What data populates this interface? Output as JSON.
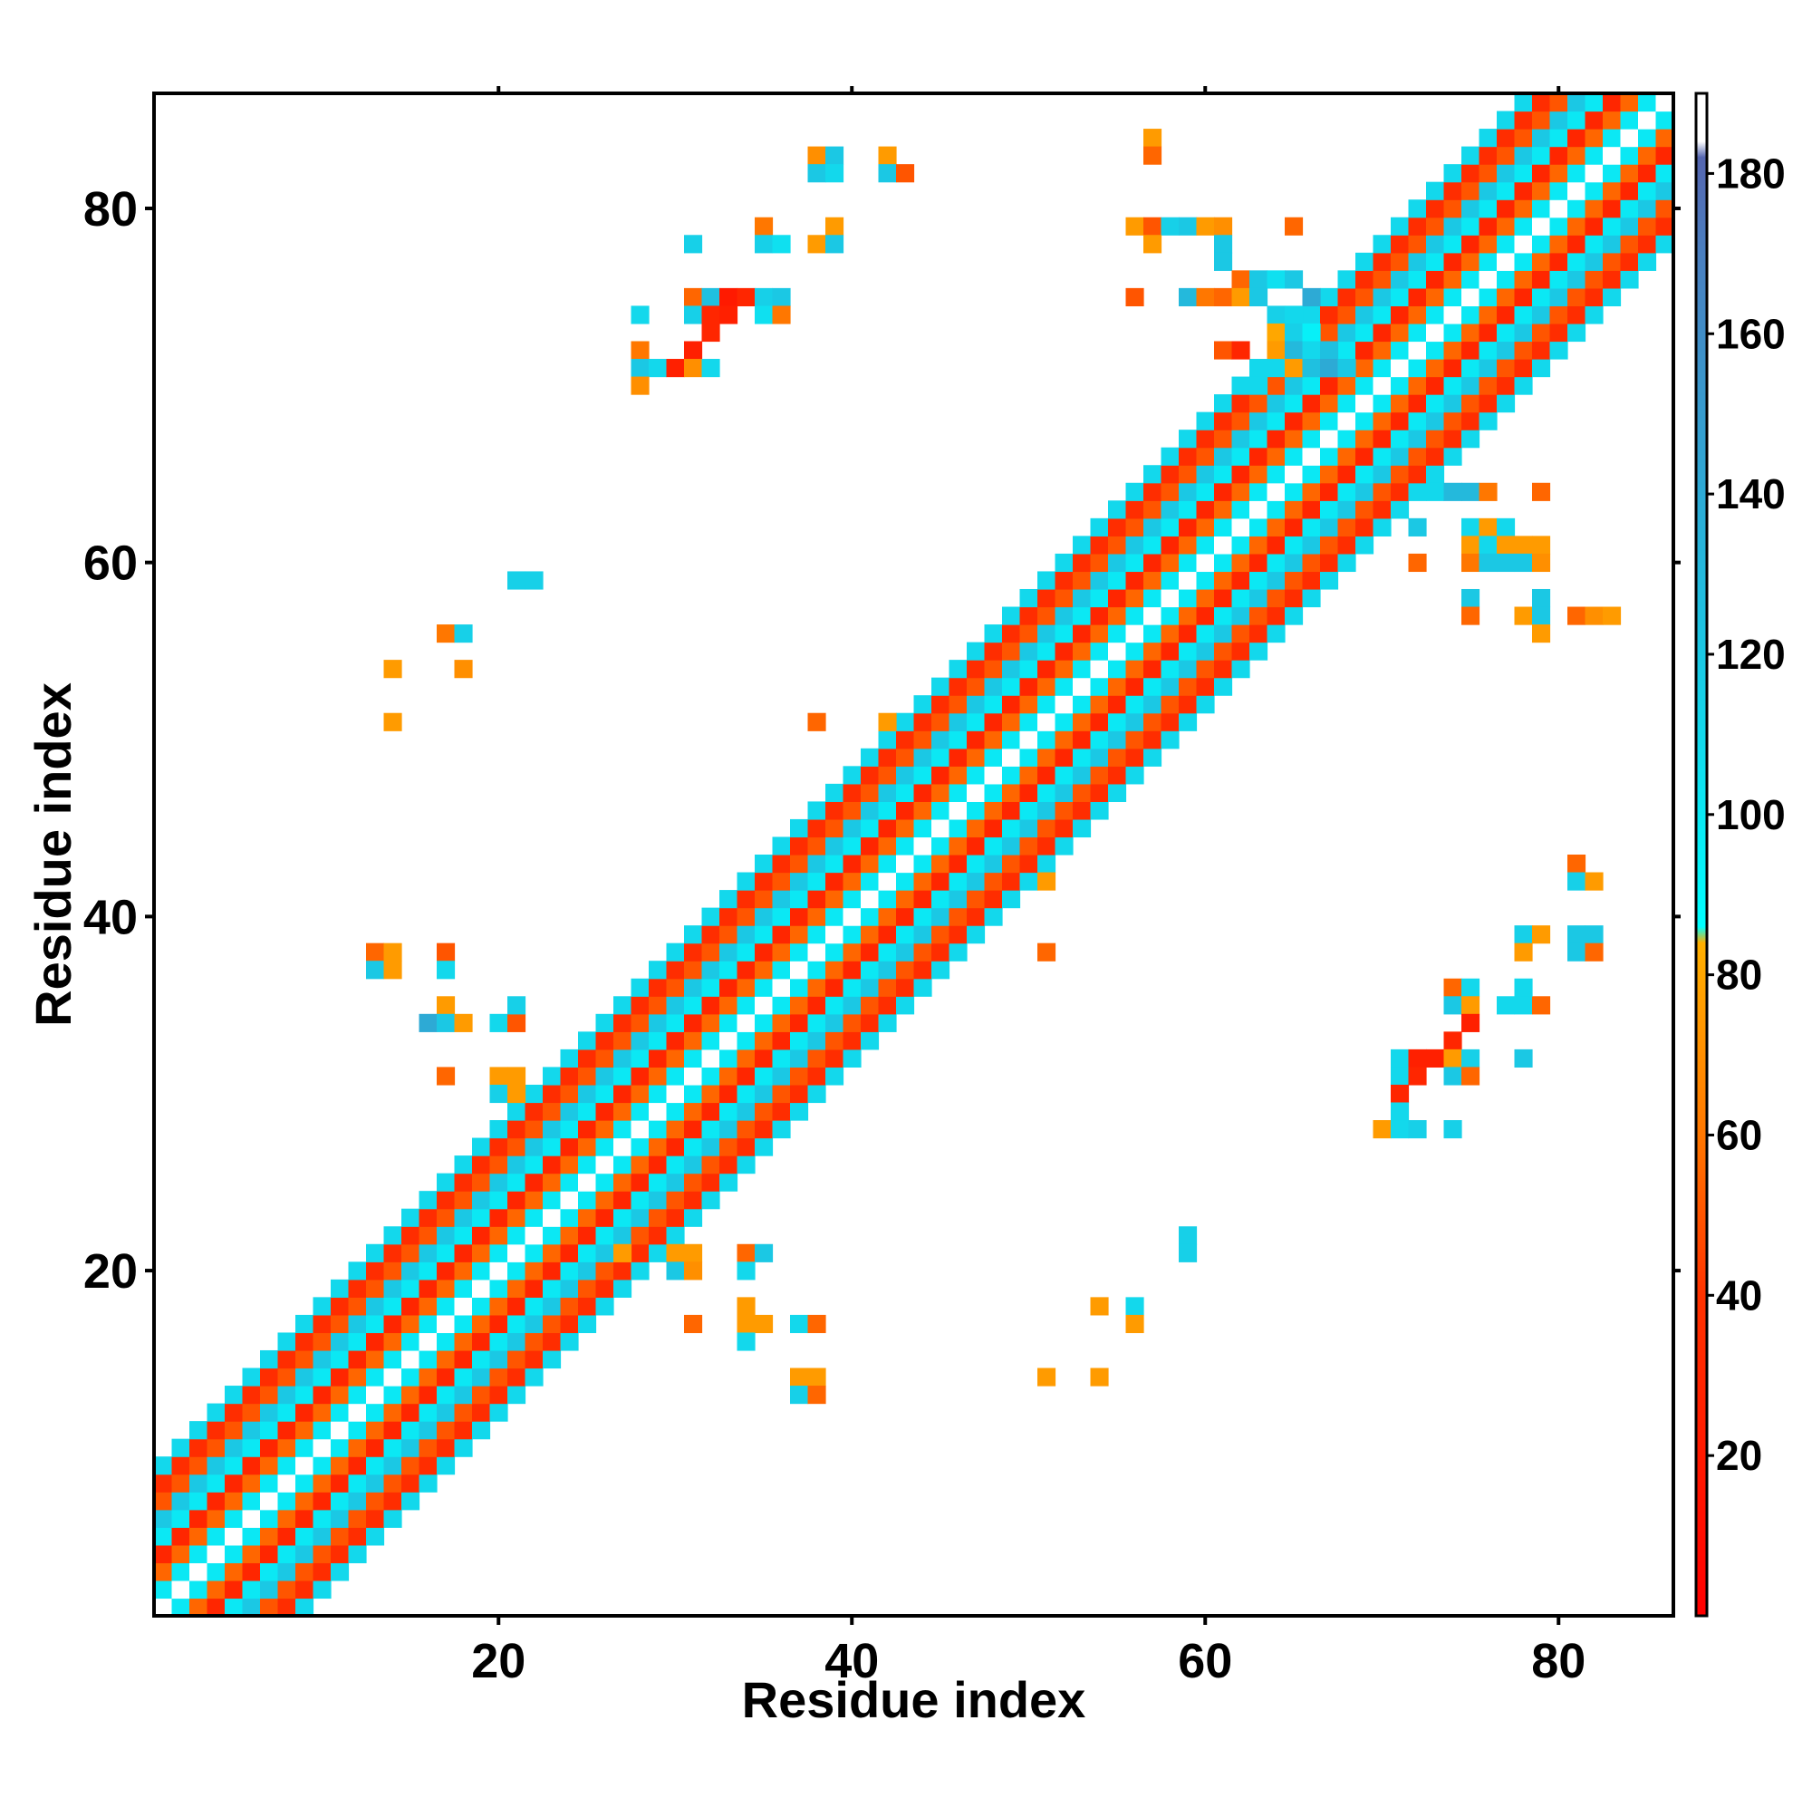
{
  "chart_data": {
    "type": "heatmap",
    "title": "",
    "xlabel": "Residue index",
    "ylabel": "Residue index",
    "xlim": [
      0.5,
      86.5
    ],
    "ylim": [
      0.5,
      86.5
    ],
    "x_ticks": [
      20,
      40,
      60,
      80
    ],
    "y_ticks": [
      20,
      40,
      60,
      80
    ],
    "colorbar": {
      "range": [
        0,
        190
      ],
      "ticks": [
        20,
        40,
        60,
        80,
        100,
        120,
        140,
        160,
        180
      ],
      "stops": [
        {
          "value": 0,
          "color": "#ff0000"
        },
        {
          "value": 40,
          "color": "#ff3300"
        },
        {
          "value": 60,
          "color": "#ff7700"
        },
        {
          "value": 84,
          "color": "#ffb000"
        },
        {
          "value": 86,
          "color": "#00ffff"
        },
        {
          "value": 125,
          "color": "#1fc0e0"
        },
        {
          "value": 170,
          "color": "#4a7fc0"
        },
        {
          "value": 182,
          "color": "#5566b0"
        },
        {
          "value": 184,
          "color": "#ffffff"
        },
        {
          "value": 190,
          "color": "#ffffff"
        }
      ]
    },
    "band_pattern": [
      {
        "offset": 0,
        "value": 187
      },
      {
        "offset": 1,
        "value": 100
      },
      {
        "offset": 2,
        "value": 55
      },
      {
        "offset": 3,
        "value": 30
      },
      {
        "offset": 4,
        "value": 100
      },
      {
        "offset": 5,
        "value": 120
      },
      {
        "offset": 6,
        "value": 50
      },
      {
        "offset": 7,
        "value": 35
      },
      {
        "offset": 8,
        "value": 110
      }
    ],
    "off_diagonal_contacts": [
      [
        38,
        83,
        70
      ],
      [
        39,
        83,
        120
      ],
      [
        38,
        82,
        120
      ],
      [
        39,
        82,
        110
      ],
      [
        42,
        83,
        75
      ],
      [
        42,
        82,
        120
      ],
      [
        43,
        82,
        50
      ],
      [
        35,
        79,
        60
      ],
      [
        35,
        78,
        115
      ],
      [
        36,
        78,
        105
      ],
      [
        39,
        79,
        75
      ],
      [
        38,
        78,
        75
      ],
      [
        39,
        78,
        120
      ],
      [
        31,
        78,
        115
      ],
      [
        28,
        74,
        110
      ],
      [
        31,
        75,
        55
      ],
      [
        32,
        75,
        125
      ],
      [
        33,
        75,
        20
      ],
      [
        34,
        75,
        30
      ],
      [
        35,
        75,
        115
      ],
      [
        36,
        75,
        120
      ],
      [
        31,
        74,
        115
      ],
      [
        32,
        74,
        30
      ],
      [
        33,
        74,
        25
      ],
      [
        35,
        74,
        105
      ],
      [
        36,
        74,
        60
      ],
      [
        32,
        73,
        30
      ],
      [
        28,
        72,
        60
      ],
      [
        31,
        72,
        25
      ],
      [
        28,
        71,
        120
      ],
      [
        29,
        71,
        110
      ],
      [
        30,
        71,
        25
      ],
      [
        31,
        71,
        70
      ],
      [
        32,
        71,
        110
      ],
      [
        28,
        70,
        70
      ],
      [
        57,
        84,
        75
      ],
      [
        57,
        83,
        55
      ],
      [
        56,
        79,
        75
      ],
      [
        57,
        79,
        50
      ],
      [
        58,
        79,
        115
      ],
      [
        59,
        79,
        120
      ],
      [
        60,
        79,
        75
      ],
      [
        61,
        79,
        70
      ],
      [
        65,
        79,
        55
      ],
      [
        57,
        78,
        75
      ],
      [
        61,
        78,
        120
      ],
      [
        61,
        77,
        120
      ],
      [
        62,
        76,
        55
      ],
      [
        63,
        76,
        120
      ],
      [
        64,
        76,
        105
      ],
      [
        65,
        76,
        120
      ],
      [
        66,
        75,
        140
      ],
      [
        56,
        75,
        50
      ],
      [
        59,
        75,
        130
      ],
      [
        60,
        75,
        60
      ],
      [
        61,
        75,
        55
      ],
      [
        62,
        75,
        75
      ],
      [
        63,
        75,
        120
      ],
      [
        64,
        74,
        115
      ],
      [
        65,
        74,
        110
      ],
      [
        64,
        73,
        80
      ],
      [
        65,
        73,
        115
      ],
      [
        66,
        73,
        95
      ],
      [
        61,
        72,
        50
      ],
      [
        62,
        72,
        30
      ],
      [
        64,
        72,
        75
      ],
      [
        65,
        72,
        130
      ],
      [
        66,
        72,
        110
      ],
      [
        67,
        72,
        125
      ],
      [
        64,
        71,
        110
      ],
      [
        65,
        71,
        75
      ],
      [
        66,
        71,
        125
      ],
      [
        67,
        71,
        140
      ],
      [
        68,
        71,
        120
      ],
      [
        63,
        70,
        110
      ],
      [
        73,
        64,
        110
      ],
      [
        74,
        64,
        130
      ],
      [
        75,
        64,
        130
      ],
      [
        76,
        64,
        60
      ],
      [
        79,
        64,
        55
      ],
      [
        72,
        62,
        120
      ],
      [
        75,
        62,
        110
      ],
      [
        76,
        62,
        75
      ],
      [
        77,
        62,
        110
      ],
      [
        75,
        61,
        75
      ],
      [
        76,
        61,
        110
      ],
      [
        77,
        61,
        75
      ],
      [
        78,
        61,
        75
      ],
      [
        79,
        61,
        75
      ],
      [
        72,
        60,
        55
      ],
      [
        75,
        60,
        60
      ],
      [
        76,
        60,
        120
      ],
      [
        77,
        60,
        120
      ],
      [
        78,
        60,
        120
      ],
      [
        79,
        60,
        70
      ],
      [
        75,
        58,
        120
      ],
      [
        79,
        58,
        120
      ],
      [
        75,
        57,
        55
      ],
      [
        78,
        57,
        75
      ],
      [
        79,
        57,
        120
      ],
      [
        81,
        57,
        55
      ],
      [
        82,
        57,
        70
      ],
      [
        83,
        57,
        75
      ],
      [
        79,
        56,
        75
      ],
      [
        21,
        59,
        115
      ],
      [
        22,
        59,
        115
      ],
      [
        17,
        56,
        60
      ],
      [
        18,
        56,
        115
      ],
      [
        14,
        54,
        75
      ],
      [
        18,
        54,
        70
      ],
      [
        14,
        51,
        75
      ],
      [
        38,
        51,
        55
      ],
      [
        42,
        51,
        75
      ],
      [
        13,
        38,
        55
      ],
      [
        14,
        38,
        75
      ],
      [
        13,
        37,
        120
      ],
      [
        14,
        37,
        75
      ],
      [
        17,
        38,
        50
      ],
      [
        17,
        37,
        110
      ],
      [
        17,
        35,
        75
      ],
      [
        16,
        34,
        140
      ],
      [
        17,
        34,
        120
      ],
      [
        18,
        34,
        75
      ],
      [
        20,
        34,
        110
      ],
      [
        21,
        34,
        50
      ],
      [
        21,
        35,
        115
      ],
      [
        17,
        31,
        55
      ],
      [
        20,
        31,
        75
      ],
      [
        21,
        31,
        75
      ],
      [
        20,
        30,
        115
      ],
      [
        21,
        30,
        75
      ],
      [
        81,
        43,
        55
      ],
      [
        81,
        42,
        115
      ],
      [
        82,
        42,
        75
      ],
      [
        78,
        39,
        115
      ],
      [
        79,
        39,
        75
      ],
      [
        81,
        39,
        120
      ],
      [
        82,
        39,
        120
      ],
      [
        78,
        38,
        75
      ],
      [
        81,
        38,
        120
      ],
      [
        82,
        38,
        55
      ],
      [
        74,
        36,
        55
      ],
      [
        75,
        36,
        110
      ],
      [
        74,
        35,
        120
      ],
      [
        75,
        35,
        75
      ],
      [
        77,
        35,
        110
      ],
      [
        78,
        35,
        110
      ],
      [
        79,
        35,
        55
      ],
      [
        78,
        36,
        110
      ],
      [
        75,
        34,
        25
      ],
      [
        74,
        33,
        30
      ],
      [
        73,
        32,
        25
      ],
      [
        71,
        32,
        110
      ],
      [
        72,
        32,
        25
      ],
      [
        74,
        32,
        75
      ],
      [
        75,
        32,
        115
      ],
      [
        71,
        31,
        110
      ],
      [
        72,
        31,
        30
      ],
      [
        74,
        31,
        120
      ],
      [
        75,
        31,
        55
      ],
      [
        71,
        30,
        30
      ],
      [
        71,
        29,
        110
      ],
      [
        70,
        28,
        75
      ],
      [
        71,
        28,
        110
      ],
      [
        72,
        28,
        115
      ],
      [
        74,
        28,
        115
      ],
      [
        78,
        32,
        120
      ],
      [
        51,
        42,
        75
      ],
      [
        51,
        38,
        55
      ],
      [
        59,
        22,
        115
      ],
      [
        59,
        21,
        115
      ],
      [
        27,
        21,
        75
      ],
      [
        30,
        21,
        75
      ],
      [
        31,
        21,
        75
      ],
      [
        30,
        20,
        120
      ],
      [
        31,
        20,
        70
      ],
      [
        34,
        21,
        55
      ],
      [
        35,
        21,
        120
      ],
      [
        34,
        20,
        110
      ],
      [
        31,
        17,
        55
      ],
      [
        34,
        18,
        75
      ],
      [
        34,
        17,
        75
      ],
      [
        35,
        17,
        75
      ],
      [
        34,
        16,
        110
      ],
      [
        37,
        17,
        110
      ],
      [
        38,
        17,
        55
      ],
      [
        54,
        18,
        75
      ],
      [
        56,
        18,
        110
      ],
      [
        56,
        17,
        75
      ],
      [
        37,
        14,
        75
      ],
      [
        38,
        14,
        75
      ],
      [
        37,
        13,
        115
      ],
      [
        38,
        13,
        55
      ],
      [
        51,
        14,
        75
      ],
      [
        54,
        14,
        75
      ]
    ]
  }
}
